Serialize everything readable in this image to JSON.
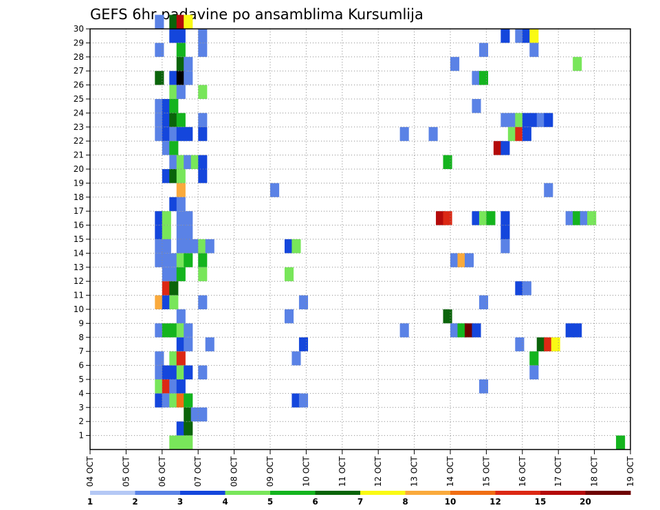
{
  "chart_data": {
    "type": "heatmap",
    "title": "GEFS 6hr padavine po ansamblima Kursumlija",
    "x_tick_labels": [
      "04 OCT",
      "05 OCT",
      "06 OCT",
      "07 OCT",
      "08 OCT",
      "09 OCT",
      "10 OCT",
      "11 OCT",
      "12 OCT",
      "13 OCT",
      "14 OCT",
      "15 OCT",
      "16 OCT",
      "17 OCT",
      "18 OCT",
      "19 OCT"
    ],
    "y_tick_labels": [
      "1",
      "2",
      "3",
      "4",
      "5",
      "6",
      "7",
      "8",
      "9",
      "10",
      "11",
      "12",
      "13",
      "14",
      "15",
      "16",
      "17",
      "18",
      "19",
      "20",
      "21",
      "22",
      "23",
      "24",
      "25",
      "26",
      "27",
      "28",
      "29",
      "30"
    ],
    "grid": true,
    "colorbar": {
      "position": "bottom",
      "boundaries": [
        1,
        2,
        3,
        4,
        5,
        6,
        7,
        8,
        10,
        12,
        15,
        20
      ],
      "labels": [
        "1",
        "2",
        "3",
        "4",
        "5",
        "6",
        "7",
        "8",
        "10",
        "12",
        "15",
        "20"
      ],
      "colors": [
        "#b4c8f5",
        "#5a82e6",
        "#1446dc",
        "#78e65a",
        "#14b41e",
        "#0a640a",
        "#fafa14",
        "#faaa3c",
        "#f06e14",
        "#dc2814",
        "#b40a0a",
        "#6e0000"
      ]
    },
    "cells": [
      [
        30,
        1.8,
        1
      ],
      [
        30,
        2.2,
        5
      ],
      [
        30,
        2.4,
        10
      ],
      [
        30,
        2.6,
        6
      ],
      [
        29,
        2.2,
        2
      ],
      [
        29,
        2.4,
        2
      ],
      [
        29,
        3.0,
        1
      ],
      [
        29,
        11.4,
        2
      ],
      [
        29,
        11.8,
        1
      ],
      [
        29,
        12.0,
        2
      ],
      [
        29,
        12.2,
        6
      ],
      [
        28,
        1.8,
        1
      ],
      [
        28,
        2.4,
        4
      ],
      [
        28,
        3.0,
        1
      ],
      [
        28,
        10.8,
        1
      ],
      [
        28,
        12.2,
        1
      ],
      [
        27,
        2.4,
        5
      ],
      [
        27,
        2.6,
        1
      ],
      [
        27,
        10.0,
        1
      ],
      [
        27,
        13.4,
        3
      ],
      [
        26,
        1.8,
        5
      ],
      [
        26,
        2.2,
        2
      ],
      [
        26,
        2.4,
        12
      ],
      [
        26,
        2.6,
        1
      ],
      [
        26,
        10.6,
        1
      ],
      [
        26,
        10.8,
        4
      ],
      [
        25,
        2.2,
        3
      ],
      [
        25,
        2.4,
        1
      ],
      [
        25,
        3.0,
        3
      ],
      [
        24,
        1.8,
        1
      ],
      [
        24,
        2.0,
        2
      ],
      [
        24,
        2.2,
        4
      ],
      [
        24,
        10.6,
        1
      ],
      [
        23,
        1.8,
        1
      ],
      [
        23,
        2.0,
        2
      ],
      [
        23,
        2.2,
        5
      ],
      [
        23,
        2.4,
        4
      ],
      [
        23,
        3.0,
        1
      ],
      [
        23,
        11.4,
        1
      ],
      [
        23,
        11.6,
        1
      ],
      [
        23,
        11.8,
        3
      ],
      [
        23,
        12.0,
        2
      ],
      [
        23,
        12.2,
        2
      ],
      [
        23,
        12.4,
        1
      ],
      [
        23,
        12.6,
        2
      ],
      [
        22,
        1.8,
        1
      ],
      [
        22,
        2.0,
        2
      ],
      [
        22,
        2.2,
        1
      ],
      [
        22,
        2.4,
        2
      ],
      [
        22,
        2.6,
        2
      ],
      [
        22,
        3.0,
        2
      ],
      [
        22,
        8.6,
        1
      ],
      [
        22,
        9.4,
        1
      ],
      [
        22,
        11.6,
        3
      ],
      [
        22,
        11.8,
        9
      ],
      [
        22,
        12.0,
        2
      ],
      [
        21,
        2.0,
        1
      ],
      [
        21,
        2.2,
        4
      ],
      [
        21,
        11.2,
        10
      ],
      [
        21,
        11.4,
        2
      ],
      [
        20,
        2.2,
        1
      ],
      [
        20,
        2.4,
        3
      ],
      [
        20,
        2.6,
        1
      ],
      [
        20,
        2.8,
        3
      ],
      [
        20,
        3.0,
        2
      ],
      [
        20,
        9.8,
        4
      ],
      [
        19,
        2.0,
        2
      ],
      [
        19,
        2.2,
        5
      ],
      [
        19,
        2.4,
        3
      ],
      [
        19,
        3.0,
        2
      ],
      [
        18,
        2.4,
        7
      ],
      [
        18,
        5.0,
        1
      ],
      [
        18,
        12.6,
        1
      ],
      [
        17,
        2.2,
        2
      ],
      [
        17,
        2.4,
        1
      ],
      [
        16,
        1.8,
        2
      ],
      [
        16,
        2.0,
        3
      ],
      [
        16,
        2.4,
        1
      ],
      [
        16,
        2.6,
        1
      ],
      [
        16,
        9.6,
        10
      ],
      [
        16,
        9.8,
        9
      ],
      [
        16,
        10.6,
        2
      ],
      [
        16,
        10.8,
        3
      ],
      [
        16,
        11.0,
        4
      ],
      [
        16,
        11.4,
        2
      ],
      [
        16,
        13.2,
        1
      ],
      [
        16,
        13.4,
        4
      ],
      [
        16,
        13.6,
        1
      ],
      [
        16,
        13.8,
        3
      ],
      [
        15,
        1.8,
        2
      ],
      [
        15,
        2.0,
        3
      ],
      [
        15,
        2.4,
        1
      ],
      [
        15,
        2.6,
        1
      ],
      [
        15,
        11.4,
        2
      ],
      [
        14,
        1.8,
        1
      ],
      [
        14,
        2.0,
        1
      ],
      [
        14,
        2.4,
        1
      ],
      [
        14,
        2.6,
        1
      ],
      [
        14,
        2.8,
        1
      ],
      [
        14,
        3.0,
        3
      ],
      [
        14,
        3.2,
        1
      ],
      [
        14,
        5.4,
        2
      ],
      [
        14,
        5.6,
        3
      ],
      [
        14,
        11.4,
        1
      ],
      [
        13,
        1.8,
        1
      ],
      [
        13,
        2.0,
        1
      ],
      [
        13,
        2.2,
        1
      ],
      [
        13,
        2.4,
        3
      ],
      [
        13,
        2.6,
        4
      ],
      [
        13,
        3.0,
        4
      ],
      [
        13,
        10.0,
        1
      ],
      [
        13,
        10.2,
        7
      ],
      [
        13,
        10.4,
        1
      ],
      [
        12,
        2.0,
        1
      ],
      [
        12,
        2.2,
        1
      ],
      [
        12,
        2.4,
        4
      ],
      [
        12,
        3.0,
        3
      ],
      [
        12,
        5.4,
        3
      ],
      [
        11,
        2.0,
        9
      ],
      [
        11,
        2.2,
        5
      ],
      [
        11,
        11.8,
        2
      ],
      [
        11,
        12.0,
        1
      ],
      [
        10,
        1.8,
        7
      ],
      [
        10,
        2.0,
        2
      ],
      [
        10,
        2.2,
        3
      ],
      [
        10,
        3.0,
        1
      ],
      [
        10,
        5.8,
        1
      ],
      [
        10,
        10.8,
        1
      ],
      [
        9,
        2.4,
        1
      ],
      [
        9,
        5.4,
        1
      ],
      [
        9,
        9.8,
        5
      ],
      [
        8,
        1.8,
        1
      ],
      [
        8,
        2.0,
        4
      ],
      [
        8,
        2.2,
        4
      ],
      [
        8,
        2.4,
        3
      ],
      [
        8,
        2.6,
        1
      ],
      [
        8,
        8.6,
        1
      ],
      [
        8,
        10.0,
        1
      ],
      [
        8,
        10.2,
        4
      ],
      [
        8,
        10.4,
        11
      ],
      [
        8,
        10.6,
        2
      ],
      [
        8,
        13.2,
        2
      ],
      [
        8,
        13.4,
        2
      ],
      [
        7,
        2.4,
        2
      ],
      [
        7,
        2.6,
        1
      ],
      [
        7,
        3.2,
        1
      ],
      [
        7,
        5.8,
        2
      ],
      [
        7,
        11.8,
        1
      ],
      [
        7,
        12.4,
        5
      ],
      [
        7,
        12.6,
        9
      ],
      [
        7,
        12.8,
        6
      ],
      [
        6,
        1.8,
        1
      ],
      [
        6,
        2.2,
        3
      ],
      [
        6,
        2.4,
        9
      ],
      [
        6,
        5.6,
        1
      ],
      [
        6,
        12.2,
        4
      ],
      [
        5,
        1.8,
        1
      ],
      [
        5,
        2.0,
        2
      ],
      [
        5,
        2.2,
        2
      ],
      [
        5,
        2.4,
        3
      ],
      [
        5,
        2.6,
        2
      ],
      [
        5,
        3.0,
        1
      ],
      [
        5,
        12.2,
        1
      ],
      [
        4,
        1.8,
        3
      ],
      [
        4,
        2.0,
        9
      ],
      [
        4,
        2.2,
        1
      ],
      [
        4,
        2.4,
        2
      ],
      [
        4,
        10.8,
        1
      ],
      [
        3,
        1.8,
        2
      ],
      [
        3,
        2.0,
        1
      ],
      [
        3,
        2.2,
        3
      ],
      [
        3,
        2.4,
        8
      ],
      [
        3,
        2.6,
        4
      ],
      [
        3,
        5.6,
        2
      ],
      [
        3,
        5.8,
        1
      ],
      [
        2,
        2.6,
        5
      ],
      [
        2,
        2.8,
        1
      ],
      [
        2,
        3.0,
        1
      ],
      [
        1,
        2.4,
        2
      ],
      [
        1,
        2.6,
        5
      ],
      [
        0,
        2.2,
        3
      ],
      [
        0,
        2.4,
        3
      ],
      [
        0,
        2.6,
        3
      ],
      [
        0,
        14.6,
        4
      ]
    ]
  }
}
